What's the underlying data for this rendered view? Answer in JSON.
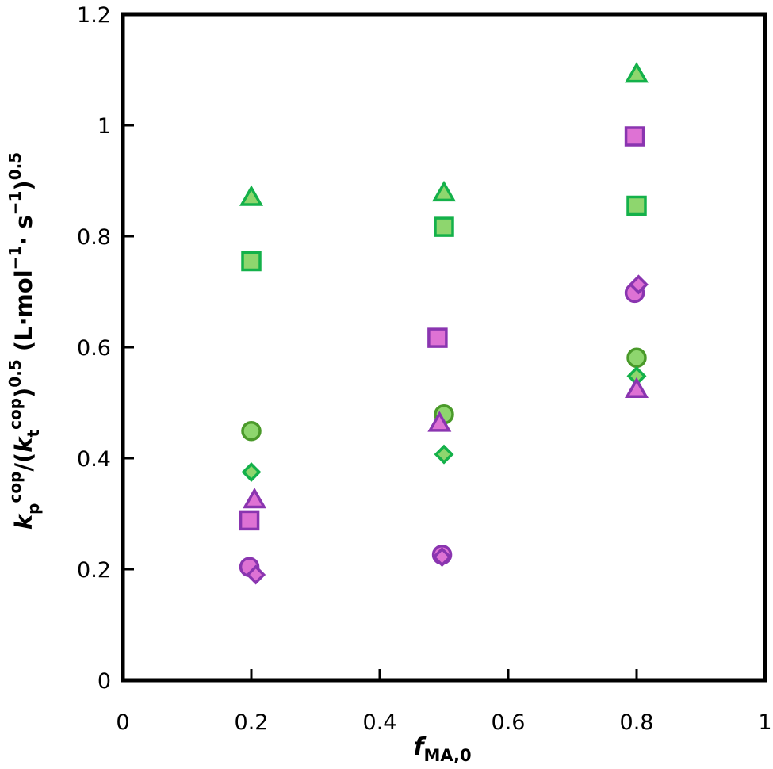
{
  "chart_data": {
    "type": "scatter",
    "title": "",
    "xlabel": {
      "var": "f",
      "sub": "MA,0"
    },
    "ylabel": {
      "k1": "k",
      "k1_sub": "p",
      "k1_sup": "cop",
      "slash_paren": "/(",
      "k2": "k",
      "k2_sub": "t",
      "k2_sup": "cop",
      "close": ")",
      "exp1": "0.5",
      "units_open": " (L·mol",
      "units_exp1": "−1",
      "units_mid": "· s",
      "units_exp2": "−1",
      "units_close": ")",
      "exp2": "0.5"
    },
    "xlim": [
      0,
      1
    ],
    "ylim": [
      0,
      1.2
    ],
    "xticks": [
      "0",
      "0.2",
      "0.4",
      "0.6",
      "0.8",
      "1"
    ],
    "yticks": [
      "0",
      "0.2",
      "0.4",
      "0.6",
      "0.8",
      "1",
      "1.2"
    ],
    "grid": false,
    "legend": "none",
    "series": [
      {
        "marker": "triangle",
        "fill": "#8ed66e",
        "stroke": "#14b14a",
        "points": [
          [
            0.2,
            0.87
          ],
          [
            0.5,
            0.878
          ],
          [
            0.8,
            1.092
          ]
        ]
      },
      {
        "marker": "square",
        "fill": "#8ed66e",
        "stroke": "#14b14a",
        "points": [
          [
            0.2,
            0.755
          ],
          [
            0.5,
            0.817
          ],
          [
            0.8,
            0.855
          ]
        ]
      },
      {
        "marker": "circle",
        "fill": "#8ed66e",
        "stroke": "#4a9a2a",
        "points": [
          [
            0.2,
            0.449
          ],
          [
            0.5,
            0.479
          ],
          [
            0.8,
            0.581
          ]
        ]
      },
      {
        "marker": "diamond",
        "fill": "#8ed66e",
        "stroke": "#14b14a",
        "points": [
          [
            0.2,
            0.375
          ],
          [
            0.5,
            0.407
          ],
          [
            0.8,
            0.548
          ]
        ]
      },
      {
        "marker": "square",
        "fill": "#de72d4",
        "stroke": "#8a35b0",
        "points": [
          [
            0.197,
            0.288
          ],
          [
            0.49,
            0.617
          ],
          [
            0.797,
            0.98
          ]
        ]
      },
      {
        "marker": "triangle",
        "fill": "#de72d4",
        "stroke": "#8a35b0",
        "points": [
          [
            0.205,
            0.325
          ],
          [
            0.493,
            0.463
          ],
          [
            0.8,
            0.524
          ]
        ]
      },
      {
        "marker": "circle",
        "fill": "#de72d4",
        "stroke": "#8a35b0",
        "points": [
          [
            0.197,
            0.204
          ],
          [
            0.497,
            0.226
          ],
          [
            0.797,
            0.698
          ]
        ]
      },
      {
        "marker": "diamond",
        "fill": "#de72d4",
        "stroke": "#8a35b0",
        "points": [
          [
            0.207,
            0.19
          ],
          [
            0.497,
            0.222
          ],
          [
            0.803,
            0.713
          ]
        ]
      }
    ]
  }
}
